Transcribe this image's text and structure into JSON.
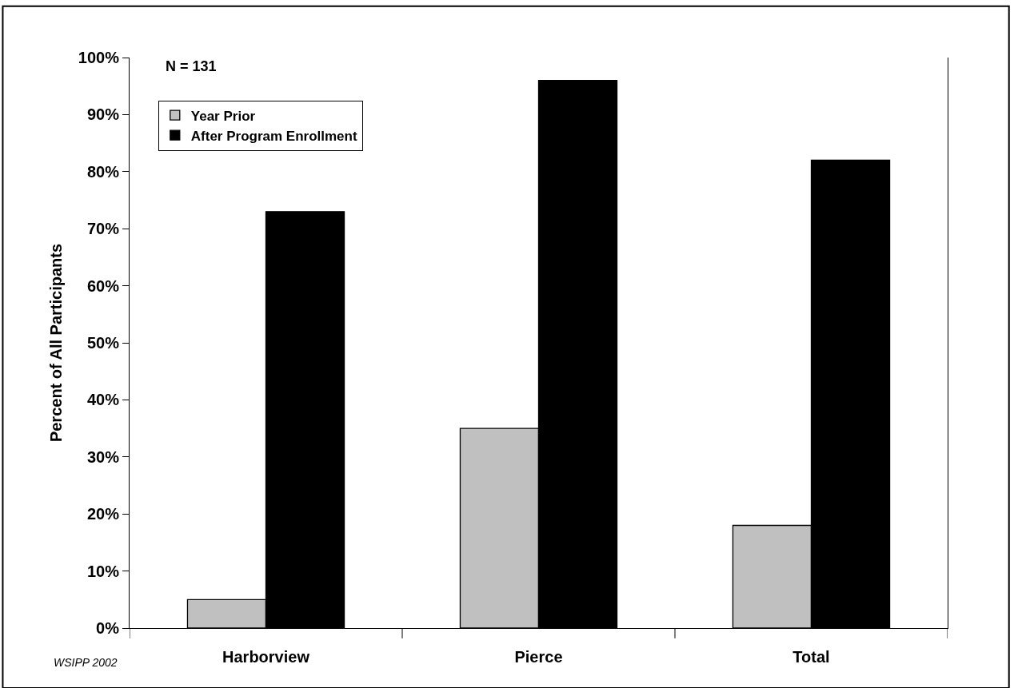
{
  "chart_data": {
    "type": "bar",
    "ylabel": "Percent of All Participants",
    "categories": [
      "Harborview",
      "Pierce",
      "Total"
    ],
    "series": [
      {
        "name": "Year Prior",
        "color": "#c0c0c0",
        "values": [
          5,
          35,
          18
        ]
      },
      {
        "name": "After Program Enrollment",
        "color": "#000000",
        "values": [
          73,
          96,
          82
        ]
      }
    ],
    "ylim": [
      0,
      100
    ],
    "yticks": [
      {
        "value": 0,
        "label": "0%"
      },
      {
        "value": 10,
        "label": "10%"
      },
      {
        "value": 20,
        "label": "20%"
      },
      {
        "value": 30,
        "label": "30%"
      },
      {
        "value": 40,
        "label": "40%"
      },
      {
        "value": 50,
        "label": "50%"
      },
      {
        "value": 60,
        "label": "60%"
      },
      {
        "value": 70,
        "label": "70%"
      },
      {
        "value": 80,
        "label": "80%"
      },
      {
        "value": 90,
        "label": "90%"
      },
      {
        "value": 100,
        "label": "100%"
      }
    ],
    "annotations": [
      "N = 131",
      "WSIPP 2002"
    ],
    "legend": "top left"
  }
}
